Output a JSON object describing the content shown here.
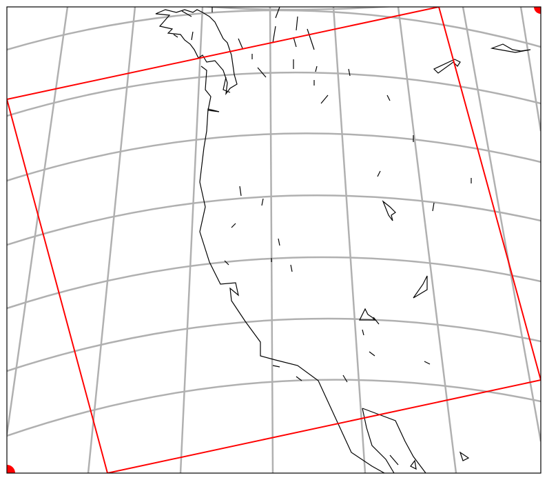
{
  "map": {
    "projection": "lambert-conformal-conic",
    "graticule_color": "#b0b0b0",
    "coastline_color": "#000000",
    "domain_box_color": "#ff0000",
    "background": "#ffffff",
    "corner_markers": [
      "top-right",
      "bottom-left"
    ]
  }
}
